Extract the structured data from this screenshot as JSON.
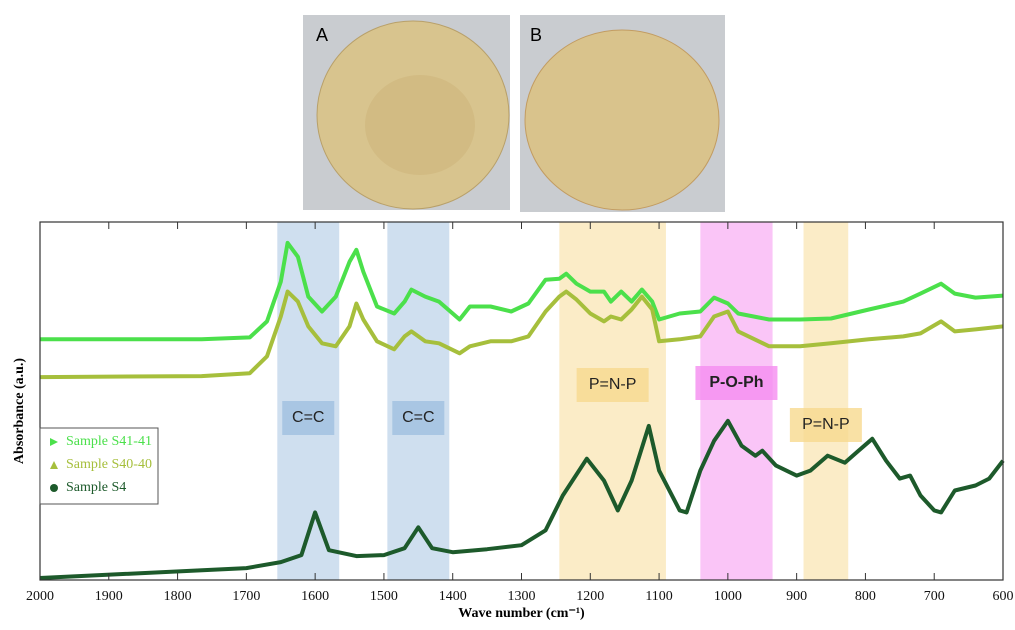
{
  "panels": [
    {
      "label": "A"
    },
    {
      "label": "B"
    }
  ],
  "chart_data": {
    "type": "line",
    "x_label": "Wave number (cm⁻¹)",
    "y_label": "Absorbance (a.u.)",
    "xlim": [
      2000,
      600
    ],
    "xticks": [
      2000,
      1900,
      1800,
      1700,
      1600,
      1500,
      1400,
      1300,
      1200,
      1100,
      1000,
      900,
      800,
      700,
      600
    ],
    "ylim": [
      0,
      360
    ],
    "bands": [
      {
        "from": 1655,
        "to": 1565,
        "color": "#9fbfe0",
        "label": "C=C"
      },
      {
        "from": 1495,
        "to": 1405,
        "color": "#9fbfe0",
        "label": "C=C"
      },
      {
        "from": 1245,
        "to": 1090,
        "color": "#f7d98f",
        "label": "P=N-P"
      },
      {
        "from": 1040,
        "to": 935,
        "color": "#f58cf0",
        "label": "P-O-Ph"
      },
      {
        "from": 890,
        "to": 825,
        "color": "#f7d98f",
        "label": "P=N-P"
      }
    ],
    "series": [
      {
        "name": "Sample S41-41",
        "color": "#4be04b",
        "marker": "triangle-right",
        "x": [
          2000,
          1765,
          1695,
          1670,
          1650,
          1640,
          1625,
          1610,
          1590,
          1570,
          1550,
          1540,
          1530,
          1510,
          1485,
          1470,
          1460,
          1440,
          1420,
          1390,
          1375,
          1345,
          1315,
          1290,
          1265,
          1245,
          1235,
          1220,
          1200,
          1180,
          1170,
          1155,
          1140,
          1125,
          1110,
          1100,
          1070,
          1040,
          1020,
          1000,
          985,
          940,
          895,
          850,
          795,
          745,
          720,
          690,
          670,
          640,
          600
        ],
        "values": [
          242,
          242,
          244,
          260,
          300,
          339,
          325,
          285,
          270,
          285,
          320,
          332,
          310,
          275,
          268,
          280,
          292,
          285,
          280,
          262,
          275,
          275,
          270,
          278,
          302,
          303,
          308,
          298,
          290,
          290,
          280,
          290,
          280,
          292,
          280,
          262,
          268,
          270,
          284,
          278,
          268,
          262,
          262,
          263,
          272,
          280,
          288,
          298,
          288,
          284,
          286
        ]
      },
      {
        "name": "Sample S40-40",
        "color": "#a6bf3c",
        "marker": "triangle",
        "x": [
          2000,
          1765,
          1695,
          1670,
          1650,
          1640,
          1625,
          1610,
          1590,
          1570,
          1550,
          1540,
          1530,
          1510,
          1485,
          1470,
          1460,
          1440,
          1420,
          1390,
          1375,
          1345,
          1315,
          1290,
          1265,
          1245,
          1235,
          1220,
          1200,
          1180,
          1170,
          1155,
          1140,
          1125,
          1110,
          1100,
          1070,
          1040,
          1020,
          1000,
          985,
          940,
          895,
          850,
          795,
          745,
          720,
          690,
          670,
          640,
          600
        ],
        "values": [
          204,
          205,
          208,
          225,
          265,
          290,
          280,
          255,
          238,
          235,
          255,
          278,
          262,
          240,
          232,
          245,
          250,
          240,
          238,
          228,
          235,
          240,
          240,
          245,
          270,
          285,
          290,
          282,
          268,
          260,
          265,
          262,
          272,
          285,
          272,
          240,
          242,
          245,
          265,
          270,
          250,
          235,
          235,
          238,
          242,
          245,
          248,
          260,
          250,
          252,
          255
        ]
      },
      {
        "name": "Sample S4",
        "color": "#1d5a2b",
        "marker": "circle",
        "x": [
          2000,
          1700,
          1650,
          1620,
          1600,
          1580,
          1540,
          1500,
          1470,
          1450,
          1430,
          1400,
          1350,
          1300,
          1265,
          1240,
          1205,
          1180,
          1160,
          1140,
          1115,
          1100,
          1070,
          1060,
          1040,
          1020,
          1000,
          980,
          960,
          950,
          930,
          900,
          880,
          855,
          830,
          810,
          790,
          770,
          750,
          735,
          720,
          700,
          690,
          670,
          640,
          620,
          600
        ],
        "values": [
          2,
          12,
          18,
          25,
          68,
          30,
          24,
          25,
          32,
          53,
          32,
          28,
          31,
          35,
          50,
          85,
          122,
          100,
          70,
          100,
          155,
          110,
          70,
          68,
          110,
          140,
          160,
          135,
          125,
          130,
          115,
          105,
          110,
          125,
          118,
          130,
          142,
          120,
          102,
          105,
          85,
          70,
          68,
          90,
          95,
          102,
          120
        ]
      }
    ]
  }
}
